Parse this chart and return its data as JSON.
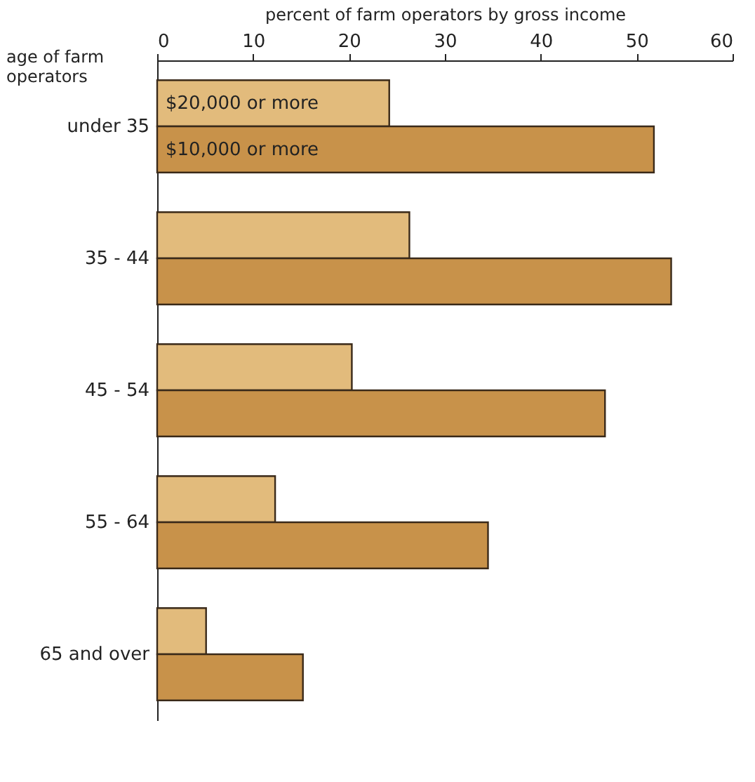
{
  "chart_data": {
    "type": "bar",
    "orientation": "horizontal",
    "xlabel": "percent of farm operators by gross income",
    "ylabel": "age of farm operators",
    "categories": [
      "under 35",
      "35 - 44",
      "45 - 54",
      "55 - 64",
      "65 and over"
    ],
    "series": [
      {
        "name": "$20,000 or more",
        "color": "#e2bb7c",
        "values": [
          24.2,
          26.3,
          20.3,
          12.3,
          5.1
        ]
      },
      {
        "name": "$10,000 or more",
        "color": "#c8924a",
        "values": [
          51.8,
          53.6,
          46.7,
          34.5,
          15.2
        ]
      }
    ],
    "xlim": [
      0,
      60
    ],
    "xticks": [
      0,
      10,
      20,
      30,
      40,
      50,
      60
    ],
    "grid": false,
    "legend": false
  }
}
